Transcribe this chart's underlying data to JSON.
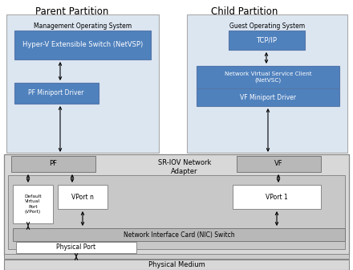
{
  "bg_color": "#ffffff",
  "light_blue_fill": "#dce6f1",
  "medium_blue_fill": "#4f81bd",
  "light_gray_fill": "#d8d8d8",
  "medium_gray_fill": "#b8b8b8",
  "inner_gray_fill": "#c8c8c8",
  "white_fill": "#ffffff",
  "parent_label": "Parent Partition",
  "child_label": "Child Partition",
  "mgmt_os_label": "Management Operating System",
  "guest_os_label": "Guest Operating System",
  "hyper_v_label": "Hyper-V Extensible Switch (NetVSP)",
  "pf_miniport_label": "PF Miniport Driver",
  "tcpip_label": "TCP/IP",
  "netvsc_label": "Network Virtual Service Client\n(NetVSC)",
  "vf_miniport_label": "VF Miniport Driver",
  "pf_label": "PF",
  "vf_label": "VF",
  "sriov_label": "SR-IOV Network\nAdapter",
  "default_vport_label": "Default\nVirtual\nPort\n(VPort)",
  "vport_n_label": "VPort n",
  "vport1_label": "VPort 1",
  "nic_switch_label": "Network Interface Card (NIC) Switch",
  "physical_port_label": "Physical Port",
  "physical_medium_label": "Physical Medium"
}
